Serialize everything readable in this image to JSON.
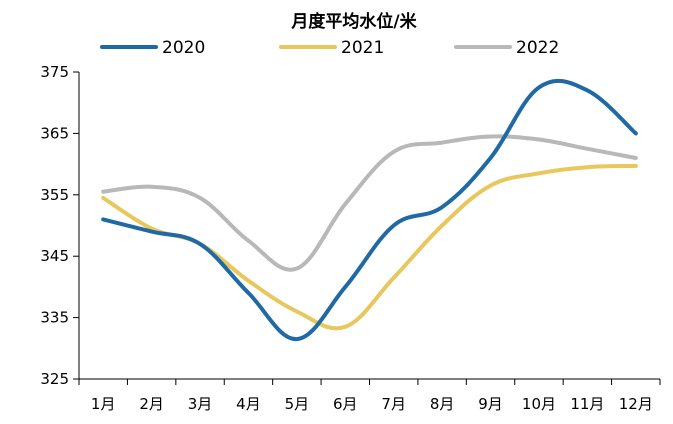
{
  "chart_data": {
    "type": "line",
    "title": "月度平均水位/米",
    "xlabel": "",
    "ylabel": "",
    "categories": [
      "1月",
      "2月",
      "3月",
      "4月",
      "5月",
      "6月",
      "7月",
      "8月",
      "9月",
      "10月",
      "11月",
      "12月"
    ],
    "ylim": [
      325,
      375
    ],
    "yticks": [
      325,
      335,
      345,
      355,
      365,
      375
    ],
    "grid": false,
    "legend_position": "top",
    "series": [
      {
        "name": "2020",
        "color": "#1f6aa5",
        "values": [
          351,
          349,
          347,
          339,
          331.5,
          340,
          350,
          353,
          361,
          372.5,
          372,
          365
        ]
      },
      {
        "name": "2021",
        "color": "#e8c75c",
        "values": [
          354.5,
          349.5,
          347,
          341,
          336,
          333.5,
          341.5,
          350,
          356.5,
          358.5,
          359.5,
          359.7
        ]
      },
      {
        "name": "2022",
        "color": "#b8b8b8",
        "values": [
          355.5,
          356.3,
          354.5,
          347.5,
          343,
          353.5,
          362,
          363.5,
          364.5,
          364,
          362.5,
          361
        ]
      }
    ]
  }
}
